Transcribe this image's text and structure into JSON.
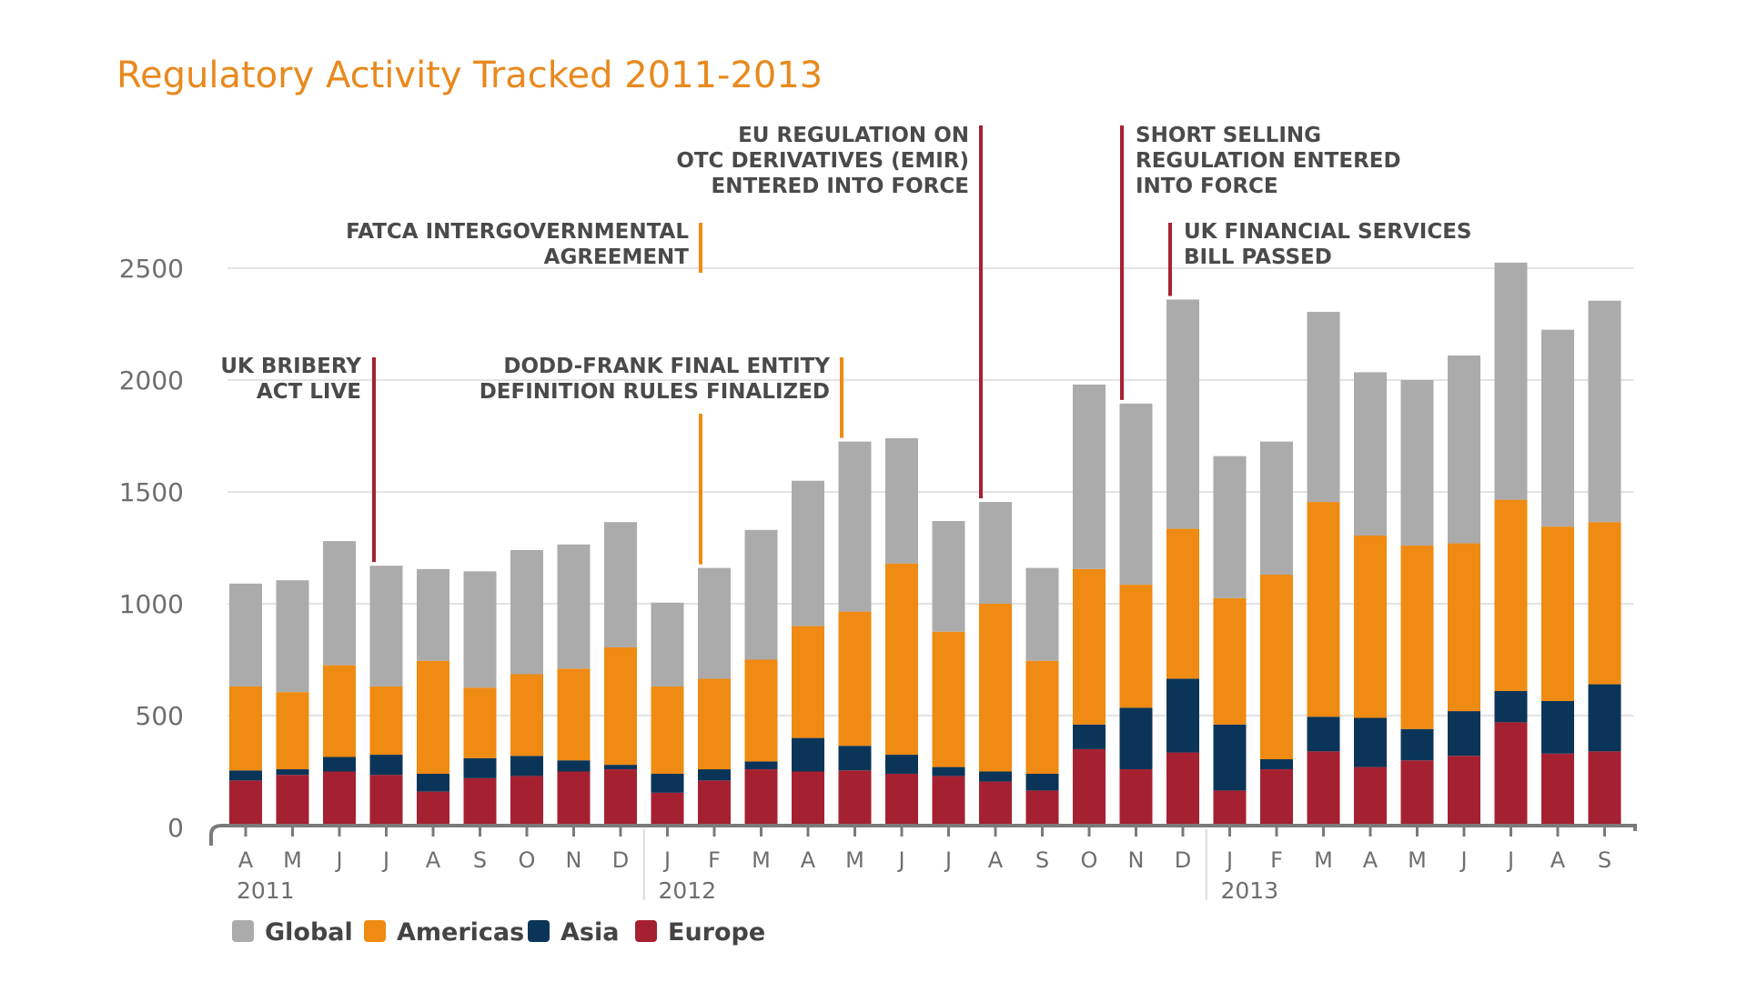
{
  "chart_data": {
    "type": "bar",
    "stacked": true,
    "title": "Regulatory Activity Tracked 2011-2013",
    "xlabel": "",
    "ylabel": "",
    "ylim": [
      0,
      2500
    ],
    "yticks": [
      "0",
      "500",
      "1000",
      "1500",
      "2000",
      "2500"
    ],
    "grid": true,
    "legend_position": "bottom-left",
    "categories": [
      "A",
      "M",
      "J",
      "J",
      "A",
      "S",
      "O",
      "N",
      "D",
      "J",
      "F",
      "M",
      "A",
      "M",
      "J",
      "J",
      "A",
      "S",
      "O",
      "N",
      "D",
      "J",
      "F",
      "M",
      "A",
      "M",
      "J",
      "J",
      "A",
      "S"
    ],
    "years": [
      {
        "label": "2011",
        "start_index": 0
      },
      {
        "label": "2012",
        "start_index": 9
      },
      {
        "label": "2013",
        "start_index": 21
      }
    ],
    "series": [
      {
        "name": "Europe",
        "color": "#A52131",
        "values": [
          210,
          235,
          250,
          235,
          160,
          220,
          230,
          250,
          260,
          155,
          210,
          260,
          250,
          255,
          240,
          230,
          205,
          165,
          350,
          260,
          335,
          165,
          260,
          340,
          270,
          300,
          320,
          470,
          330,
          340
        ]
      },
      {
        "name": "Asia",
        "color": "#0B3558",
        "values": [
          45,
          25,
          65,
          90,
          80,
          90,
          90,
          50,
          20,
          85,
          50,
          35,
          150,
          110,
          85,
          40,
          45,
          75,
          110,
          275,
          330,
          295,
          45,
          155,
          220,
          140,
          200,
          140,
          235,
          300
        ]
      },
      {
        "name": "Americas",
        "color": "#EF8A12",
        "values": [
          375,
          345,
          410,
          305,
          505,
          315,
          365,
          410,
          525,
          390,
          405,
          455,
          500,
          600,
          855,
          605,
          750,
          505,
          695,
          550,
          670,
          565,
          825,
          960,
          815,
          820,
          750,
          855,
          780,
          725
        ]
      },
      {
        "name": "Global",
        "color": "#ABABAB",
        "values": [
          460,
          500,
          555,
          540,
          410,
          520,
          555,
          555,
          560,
          375,
          495,
          580,
          650,
          760,
          560,
          495,
          455,
          415,
          825,
          810,
          1025,
          635,
          595,
          850,
          730,
          740,
          840,
          1060,
          880,
          990
        ]
      }
    ],
    "annotations": [
      {
        "text": [
          "UK BRIBERY",
          "ACT LIVE"
        ],
        "index": 3,
        "color": "#A52131"
      },
      {
        "text": [
          "FATCA INTERGOVERNMENTAL",
          "AGREEMENT"
        ],
        "index": 10,
        "color": "#EF8A12"
      },
      {
        "text": [
          "DODD-FRANK FINAL ENTITY",
          "DEFINITION RULES FINALIZED"
        ],
        "index": 13,
        "color": "#EF8A12"
      },
      {
        "text": [
          "EU REGULATION ON",
          "OTC DERIVATIVES (EMIR)",
          "ENTERED INTO FORCE"
        ],
        "index": 16,
        "color": "#A52131"
      },
      {
        "text": [
          "SHORT SELLING",
          "REGULATION ENTERED",
          "INTO FORCE"
        ],
        "index": 19,
        "color": "#A52131"
      },
      {
        "text": [
          "UK FINANCIAL SERVICES",
          "BILL PASSED"
        ],
        "index": 20,
        "color": "#A52131"
      }
    ],
    "legend": [
      "Global",
      "Americas",
      "Asia",
      "Europe"
    ]
  }
}
